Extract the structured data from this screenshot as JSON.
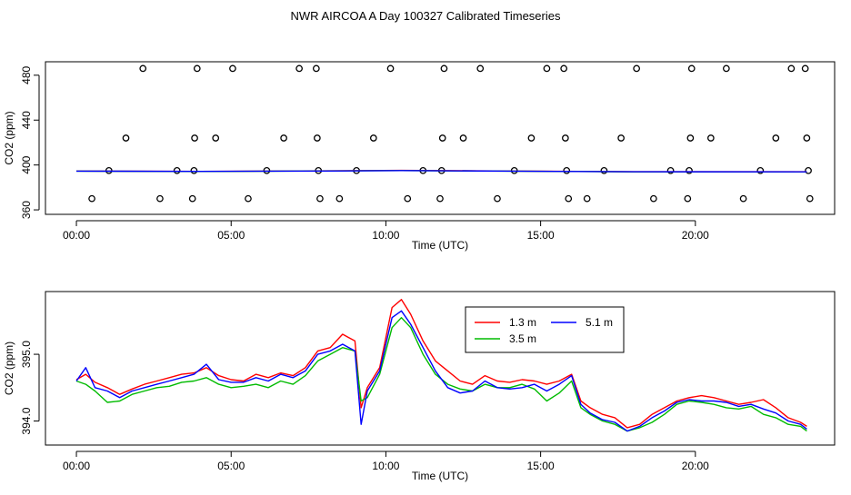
{
  "title": "NWR AIRCOA A  Day 100327  Calibrated Timeseries",
  "chart_data": [
    {
      "type": "scatter",
      "xlabel": "Time (UTC)",
      "ylabel": "CO2 (ppm)",
      "xlim": [
        -1.0,
        24.5
      ],
      "ylim": [
        356,
        492
      ],
      "x_ticks": [
        0,
        5,
        10,
        15,
        20
      ],
      "x_tick_labels": [
        "00:00",
        "05:00",
        "10:00",
        "15:00",
        "20:00"
      ],
      "y_ticks": [
        360,
        400,
        440,
        480
      ],
      "y_tick_labels": [
        "360",
        "400",
        "440",
        "480"
      ],
      "points": {
        "x": [
          0.5,
          1.05,
          1.6,
          2.15,
          2.7,
          3.25,
          3.75,
          3.8,
          3.82,
          3.9,
          4.5,
          5.05,
          5.55,
          6.15,
          6.7,
          7.2,
          7.75,
          7.78,
          7.82,
          7.87,
          8.5,
          9.05,
          9.6,
          10.15,
          10.7,
          11.2,
          11.75,
          11.8,
          11.83,
          11.88,
          12.5,
          13.05,
          13.6,
          14.15,
          14.7,
          15.2,
          15.75,
          15.8,
          15.84,
          15.9,
          16.5,
          17.05,
          17.6,
          18.1,
          18.65,
          19.2,
          19.75,
          19.8,
          19.84,
          19.88,
          20.5,
          21.0,
          21.55,
          22.1,
          22.6,
          23.1,
          23.55,
          23.6,
          23.65,
          23.7
        ],
        "y": [
          370,
          395,
          424,
          486,
          370,
          395,
          370,
          395,
          424,
          486,
          424,
          486,
          370,
          395,
          424,
          486,
          486,
          424,
          395,
          370,
          370,
          395,
          424,
          486,
          370,
          395,
          370,
          395,
          424,
          486,
          424,
          486,
          370,
          395,
          424,
          486,
          486,
          424,
          395,
          370,
          370,
          395,
          424,
          486,
          370,
          395,
          370,
          395,
          424,
          486,
          424,
          486,
          370,
          395,
          424,
          486,
          486,
          424,
          395,
          370
        ]
      },
      "series": [
        {
          "name": "1.3 m",
          "color": "#ff0000",
          "x": [
            0,
            4,
            8,
            10.5,
            14,
            18,
            23.6
          ],
          "values": [
            394.6,
            394.3,
            394.8,
            395.2,
            394.6,
            394.0,
            394.0
          ]
        },
        {
          "name": "3.5 m",
          "color": "#00bb00",
          "x": [
            0,
            4,
            8,
            10.5,
            14,
            18,
            23.6
          ],
          "values": [
            394.5,
            394.2,
            394.7,
            395.0,
            394.5,
            393.9,
            393.9
          ]
        },
        {
          "name": "5.1 m",
          "color": "#0000ff",
          "x": [
            0,
            4,
            8,
            10.5,
            14,
            18,
            23.6
          ],
          "values": [
            394.5,
            394.3,
            394.6,
            395.0,
            394.5,
            394.0,
            393.9
          ]
        }
      ]
    },
    {
      "type": "line",
      "xlabel": "Time (UTC)",
      "ylabel": "CO2 (ppm)",
      "xlim": [
        -1.0,
        24.5
      ],
      "ylim": [
        393.64,
        395.94
      ],
      "x_ticks": [
        0,
        5,
        10,
        15,
        20
      ],
      "x_tick_labels": [
        "00:00",
        "05:00",
        "10:00",
        "15:00",
        "20:00"
      ],
      "y_ticks": [
        394.0,
        395.0
      ],
      "y_tick_labels": [
        "394.0",
        "395.0"
      ],
      "legend": {
        "position": "top-center",
        "entries": [
          "1.3 m",
          "5.1 m",
          "3.5 m"
        ]
      },
      "series": [
        {
          "name": "1.3 m",
          "color": "#ff0000",
          "x": [
            0.0,
            0.3,
            0.6,
            1.0,
            1.4,
            1.8,
            2.2,
            2.6,
            3.0,
            3.4,
            3.8,
            4.2,
            4.6,
            5.0,
            5.4,
            5.8,
            6.2,
            6.6,
            7.0,
            7.4,
            7.8,
            8.2,
            8.6,
            9.0,
            9.2,
            9.4,
            9.8,
            10.2,
            10.5,
            10.8,
            11.2,
            11.6,
            12.0,
            12.4,
            12.8,
            13.2,
            13.6,
            14.0,
            14.4,
            14.8,
            15.2,
            15.6,
            16.0,
            16.3,
            16.6,
            17.0,
            17.4,
            17.8,
            18.2,
            18.6,
            19.0,
            19.4,
            19.8,
            20.2,
            20.6,
            21.0,
            21.4,
            21.8,
            22.2,
            22.6,
            23.0,
            23.4,
            23.6
          ],
          "values": [
            394.62,
            394.7,
            394.58,
            394.5,
            394.4,
            394.48,
            394.55,
            394.6,
            394.65,
            394.7,
            394.72,
            394.8,
            394.68,
            394.62,
            394.6,
            394.7,
            394.65,
            394.72,
            394.68,
            394.8,
            395.05,
            395.1,
            395.3,
            395.2,
            394.2,
            394.5,
            394.8,
            395.7,
            395.82,
            395.6,
            395.2,
            394.9,
            394.75,
            394.6,
            394.55,
            394.68,
            394.6,
            394.58,
            394.62,
            394.6,
            394.55,
            394.6,
            394.7,
            394.3,
            394.2,
            394.1,
            394.05,
            393.9,
            393.95,
            394.1,
            394.2,
            394.3,
            394.35,
            394.38,
            394.35,
            394.3,
            394.25,
            394.28,
            394.32,
            394.2,
            394.05,
            393.98,
            393.92
          ]
        },
        {
          "name": "3.5 m",
          "color": "#00bb00",
          "x": [
            0.0,
            0.3,
            0.6,
            1.0,
            1.4,
            1.8,
            2.2,
            2.6,
            3.0,
            3.4,
            3.8,
            4.2,
            4.6,
            5.0,
            5.4,
            5.8,
            6.2,
            6.6,
            7.0,
            7.4,
            7.8,
            8.2,
            8.6,
            9.0,
            9.2,
            9.4,
            9.8,
            10.2,
            10.5,
            10.8,
            11.2,
            11.6,
            12.0,
            12.4,
            12.8,
            13.2,
            13.6,
            14.0,
            14.4,
            14.8,
            15.2,
            15.6,
            16.0,
            16.3,
            16.6,
            17.0,
            17.4,
            17.8,
            18.2,
            18.6,
            19.0,
            19.4,
            19.8,
            20.2,
            20.6,
            21.0,
            21.4,
            21.8,
            22.2,
            22.6,
            23.0,
            23.4,
            23.6
          ],
          "values": [
            394.6,
            394.55,
            394.45,
            394.28,
            394.3,
            394.4,
            394.45,
            394.5,
            394.52,
            394.58,
            394.6,
            394.65,
            394.55,
            394.5,
            394.52,
            394.55,
            394.5,
            394.6,
            394.55,
            394.68,
            394.9,
            395.0,
            395.1,
            395.05,
            394.3,
            394.35,
            394.7,
            395.4,
            395.55,
            395.4,
            395.0,
            394.7,
            394.55,
            394.48,
            394.45,
            394.55,
            394.5,
            394.5,
            394.55,
            394.48,
            394.3,
            394.42,
            394.6,
            394.2,
            394.1,
            394.0,
            393.95,
            393.85,
            393.9,
            393.98,
            394.1,
            394.25,
            394.3,
            394.28,
            394.25,
            394.2,
            394.18,
            394.22,
            394.1,
            394.05,
            393.95,
            393.92,
            393.85
          ]
        },
        {
          "name": "5.1 m",
          "color": "#0000ff",
          "x": [
            0.0,
            0.3,
            0.6,
            1.0,
            1.4,
            1.8,
            2.2,
            2.6,
            3.0,
            3.4,
            3.8,
            4.2,
            4.6,
            5.0,
            5.4,
            5.8,
            6.2,
            6.6,
            7.0,
            7.4,
            7.8,
            8.2,
            8.6,
            9.0,
            9.2,
            9.4,
            9.8,
            10.2,
            10.5,
            10.8,
            11.2,
            11.6,
            12.0,
            12.4,
            12.8,
            13.2,
            13.6,
            14.0,
            14.4,
            14.8,
            15.2,
            15.6,
            16.0,
            16.3,
            16.6,
            17.0,
            17.4,
            17.8,
            18.2,
            18.6,
            19.0,
            19.4,
            19.8,
            20.2,
            20.6,
            21.0,
            21.4,
            21.8,
            22.2,
            22.6,
            23.0,
            23.4,
            23.6
          ],
          "values": [
            394.6,
            394.8,
            394.5,
            394.45,
            394.35,
            394.45,
            394.5,
            394.55,
            394.6,
            394.65,
            394.7,
            394.85,
            394.62,
            394.58,
            394.58,
            394.65,
            394.6,
            394.7,
            394.65,
            394.75,
            395.0,
            395.05,
            395.15,
            395.05,
            393.95,
            394.45,
            394.75,
            395.55,
            395.65,
            395.45,
            395.1,
            394.75,
            394.5,
            394.42,
            394.45,
            394.6,
            394.5,
            394.48,
            394.5,
            394.55,
            394.45,
            394.55,
            394.68,
            394.25,
            394.12,
            394.02,
            393.98,
            393.85,
            393.92,
            394.05,
            394.15,
            394.28,
            394.32,
            394.3,
            394.3,
            394.28,
            394.22,
            394.25,
            394.18,
            394.12,
            394.0,
            393.95,
            393.88
          ]
        }
      ]
    }
  ]
}
